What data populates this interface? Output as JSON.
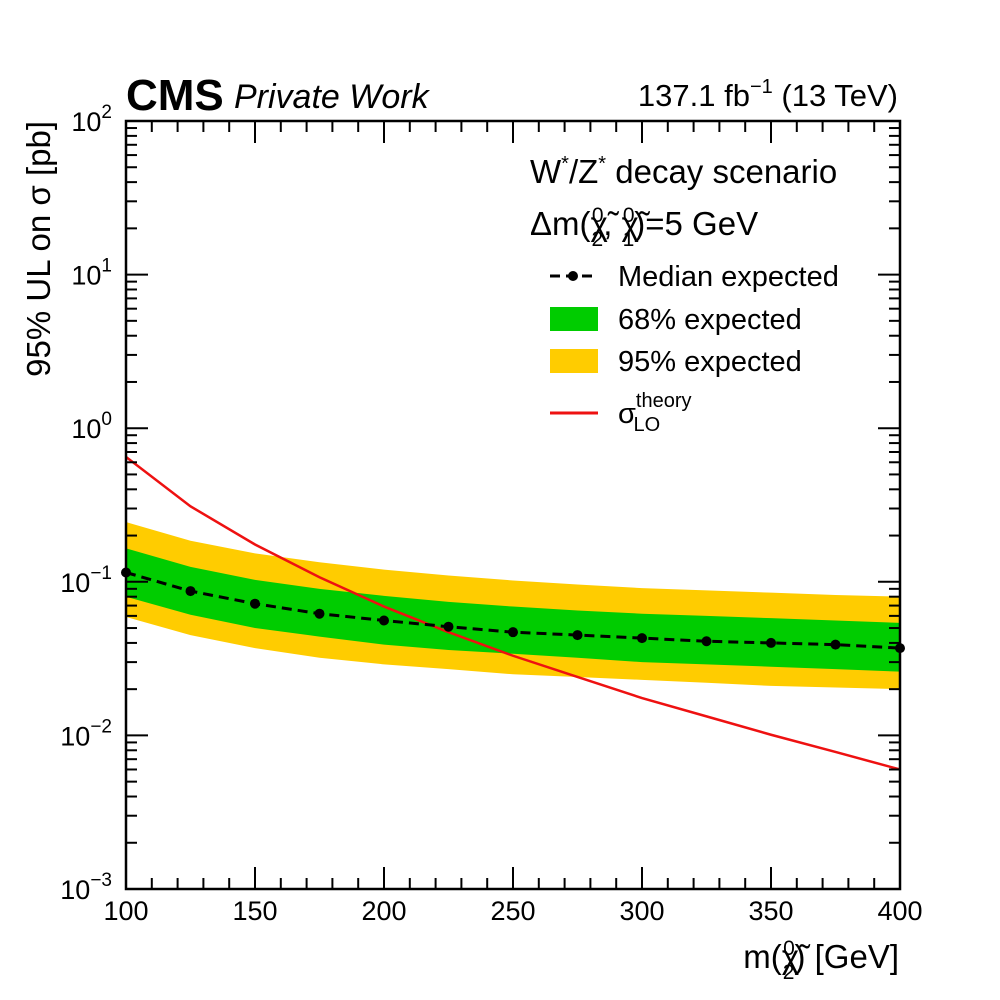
{
  "header": {
    "experiment": "CMS",
    "tag": "Private Work",
    "lumi_value": "137.1 fb",
    "lumi_exp": "−1",
    "lumi_energy": " (13 TeV)"
  },
  "chart_data": {
    "type": "line",
    "title": "",
    "xlabel": "m(χ̃₂⁰) [GeV]",
    "xlabel_parts": {
      "pre": "m(χ̃",
      "sup": "0",
      "sub": "2",
      "post": ") [GeV]"
    },
    "ylabel": "95% UL on σ [pb]",
    "xlim": [
      100,
      400
    ],
    "ylim": [
      0.001,
      100
    ],
    "yscale": "log",
    "x_ticks": [
      "100",
      "150",
      "200",
      "250",
      "300",
      "350",
      "400"
    ],
    "y_ticks": [
      {
        "base": "10",
        "exp": "−3",
        "value": 0.001
      },
      {
        "base": "10",
        "exp": "−2",
        "value": 0.01
      },
      {
        "base": "10",
        "exp": "−1",
        "value": 0.1
      },
      {
        "base": "10",
        "exp": "0",
        "value": 1
      },
      {
        "base": "10",
        "exp": "1",
        "value": 10
      },
      {
        "base": "10",
        "exp": "2",
        "value": 100
      }
    ],
    "annotations": {
      "line1": {
        "a": "W",
        "a_sup": "*",
        "mid": "/Z",
        "b_sup": "*",
        "rest": " decay scenario"
      },
      "line2": {
        "pre": "Δm(χ̃",
        "s1_sup": "0",
        "s1_sub": "2",
        "mid": ", χ̃",
        "s2_sup": "0",
        "s2_sub": "1",
        "post": ")=5 GeV"
      }
    },
    "legend": {
      "position": "top-right",
      "median": "Median expected",
      "band68": "68% expected",
      "band95": "95% expected",
      "theory_base": "σ",
      "theory_sup": "theory",
      "theory_sub": "LO"
    },
    "colors": {
      "median": "#000000",
      "band68": "#00cc00",
      "band95": "#ffcc00",
      "theory": "#ee1111"
    },
    "series": [
      {
        "name": "Median expected",
        "x": [
          100,
          125,
          150,
          175,
          200,
          225,
          250,
          275,
          300,
          325,
          350,
          375,
          400
        ],
        "values": [
          0.115,
          0.087,
          0.072,
          0.062,
          0.056,
          0.051,
          0.047,
          0.045,
          0.043,
          0.041,
          0.04,
          0.039,
          0.037
        ]
      },
      {
        "name": "68% expected",
        "x": [
          100,
          125,
          150,
          175,
          200,
          225,
          250,
          275,
          300,
          325,
          350,
          375,
          400
        ],
        "lower": [
          0.08,
          0.061,
          0.05,
          0.044,
          0.039,
          0.036,
          0.034,
          0.032,
          0.03,
          0.029,
          0.028,
          0.027,
          0.026
        ],
        "upper": [
          0.165,
          0.125,
          0.103,
          0.09,
          0.081,
          0.074,
          0.069,
          0.065,
          0.062,
          0.06,
          0.058,
          0.056,
          0.054
        ]
      },
      {
        "name": "95% expected",
        "x": [
          100,
          125,
          150,
          175,
          200,
          225,
          250,
          275,
          300,
          325,
          350,
          375,
          400
        ],
        "lower": [
          0.059,
          0.045,
          0.037,
          0.032,
          0.029,
          0.027,
          0.025,
          0.024,
          0.023,
          0.022,
          0.021,
          0.0205,
          0.02
        ],
        "upper": [
          0.245,
          0.185,
          0.153,
          0.134,
          0.12,
          0.11,
          0.102,
          0.096,
          0.091,
          0.088,
          0.085,
          0.082,
          0.08
        ]
      },
      {
        "name": "σ LO theory",
        "x": [
          100,
          125,
          150,
          175,
          200,
          225,
          250,
          275,
          300,
          325,
          350,
          375,
          400
        ],
        "values": [
          0.65,
          0.31,
          0.175,
          0.107,
          0.069,
          0.047,
          0.033,
          0.024,
          0.0175,
          0.0133,
          0.0101,
          0.0078,
          0.006
        ]
      }
    ]
  }
}
